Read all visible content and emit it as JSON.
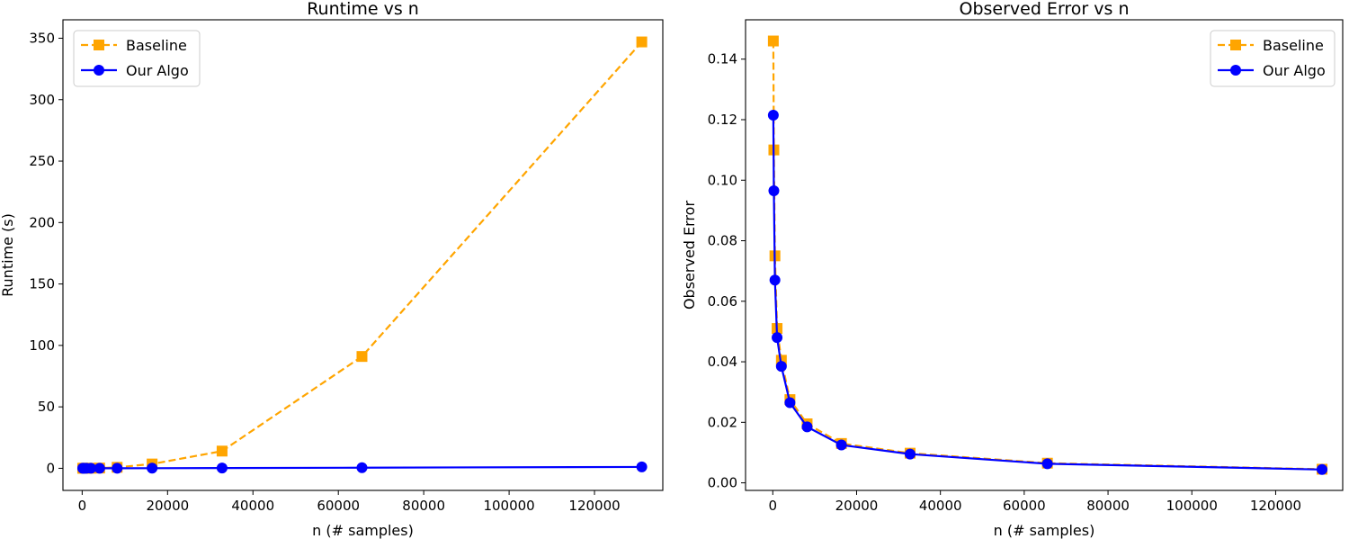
{
  "chart_data": [
    {
      "type": "line",
      "title": "Runtime vs n",
      "xlabel": "n (# samples)",
      "ylabel": "Runtime (s)",
      "xlim": [
        -4500,
        136000
      ],
      "ylim": [
        -18,
        365
      ],
      "xticks": [
        0,
        20000,
        40000,
        60000,
        80000,
        100000,
        120000
      ],
      "yticks": [
        0,
        50,
        100,
        150,
        200,
        250,
        300,
        350
      ],
      "legend_position": "upper-left",
      "grid": false,
      "x": [
        128,
        256,
        512,
        1024,
        2048,
        4096,
        8192,
        16384,
        32768,
        65536,
        131072
      ],
      "series": [
        {
          "name": "Baseline",
          "color": "#FFA500",
          "marker": "square",
          "linestyle": "dashed",
          "values": [
            0.01,
            0.01,
            0.02,
            0.03,
            0.07,
            0.2,
            0.8,
            3.5,
            14,
            91,
            347
          ]
        },
        {
          "name": "Our Algo",
          "color": "#0000FF",
          "marker": "circle",
          "linestyle": "solid",
          "values": [
            0.001,
            0.002,
            0.003,
            0.005,
            0.01,
            0.02,
            0.04,
            0.09,
            0.2,
            0.5,
            1.1
          ]
        }
      ]
    },
    {
      "type": "line",
      "title": "Observed Error vs n",
      "xlabel": "n (# samples)",
      "ylabel": "Observed Error",
      "xlim": [
        -6500,
        136000
      ],
      "ylim": [
        -0.0025,
        0.153
      ],
      "xticks": [
        0,
        20000,
        40000,
        60000,
        80000,
        100000,
        120000
      ],
      "yticks": [
        "0.00",
        "0.02",
        "0.04",
        "0.06",
        "0.08",
        "0.10",
        "0.12",
        "0.14"
      ],
      "legend_position": "upper-right",
      "grid": false,
      "x": [
        128,
        256,
        512,
        1024,
        2048,
        4096,
        8192,
        16384,
        32768,
        65536,
        131072
      ],
      "series": [
        {
          "name": "Baseline",
          "color": "#FFA500",
          "marker": "square",
          "linestyle": "dashed",
          "values": [
            0.146,
            0.11,
            0.075,
            0.051,
            0.0405,
            0.0275,
            0.0195,
            0.013,
            0.0098,
            0.0065,
            0.0045
          ]
        },
        {
          "name": "Our Algo",
          "color": "#0000FF",
          "marker": "circle",
          "linestyle": "solid",
          "values": [
            0.1215,
            0.0965,
            0.067,
            0.048,
            0.0385,
            0.0265,
            0.0185,
            0.0125,
            0.0095,
            0.0063,
            0.0044
          ]
        }
      ]
    }
  ]
}
